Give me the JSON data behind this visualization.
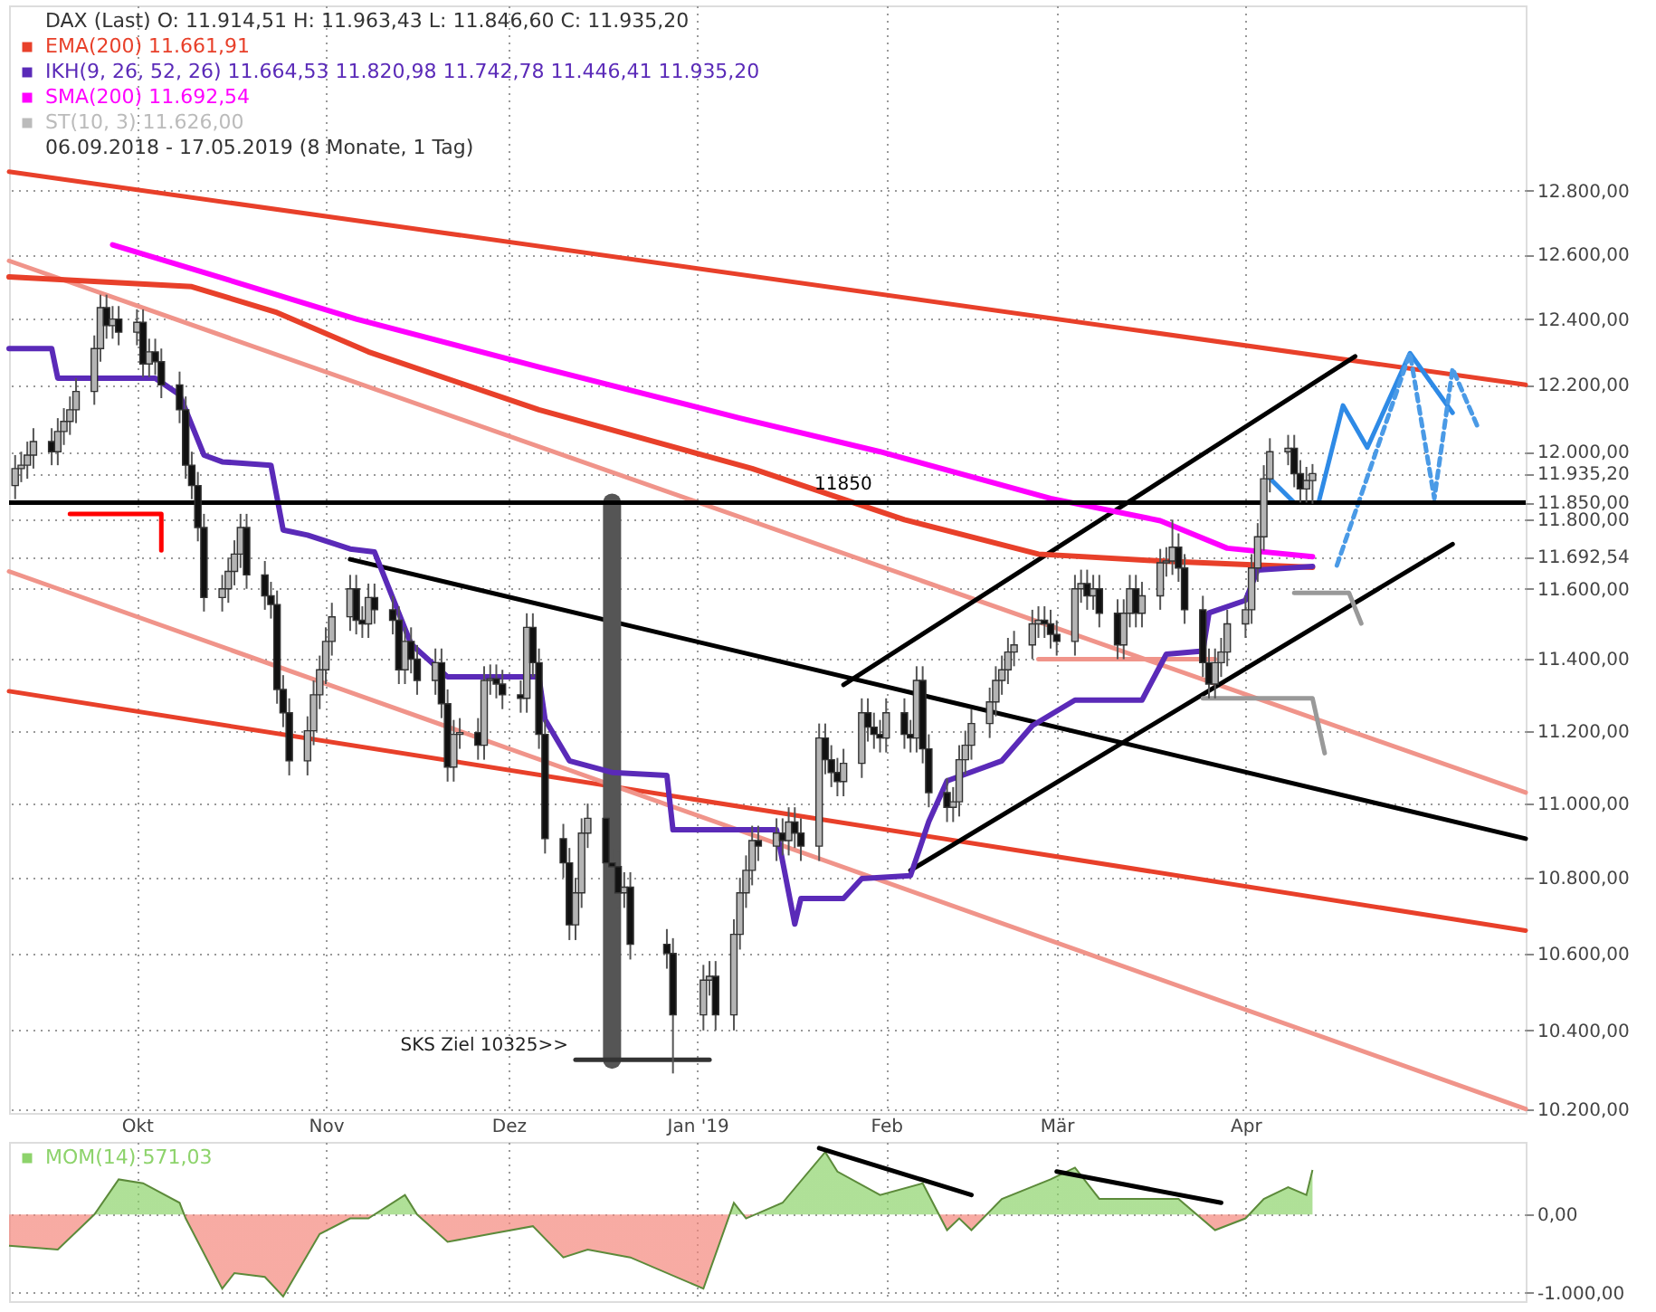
{
  "chart_data": [
    {
      "type": "candlestick",
      "title": "DAX (Last) O: 11.914,51 H: 11.963,43 L: 11.846,60 C: 11.935,20",
      "subtitle": "06.09.2018 - 17.05.2019 (8 Monate, 1 Tag)",
      "x": [
        "2018-09-11",
        "2018-09-12",
        "2018-09-13",
        "2018-09-14",
        "2018-09-17",
        "2018-09-18",
        "2018-09-19",
        "2018-09-20",
        "2018-09-21",
        "2018-09-24",
        "2018-09-25",
        "2018-09-26",
        "2018-09-27",
        "2018-09-28",
        "2018-10-01",
        "2018-10-02",
        "2018-10-03",
        "2018-10-04",
        "2018-10-05",
        "2018-10-08",
        "2018-10-09",
        "2018-10-10",
        "2018-10-11",
        "2018-10-12",
        "2018-10-15",
        "2018-10-16",
        "2018-10-17",
        "2018-10-18",
        "2018-10-19",
        "2018-10-22",
        "2018-10-23",
        "2018-10-24",
        "2018-10-25",
        "2018-10-26",
        "2018-10-29",
        "2018-10-30",
        "2018-10-31",
        "2018-11-01",
        "2018-11-02",
        "2018-11-05",
        "2018-11-06",
        "2018-11-07",
        "2018-11-08",
        "2018-11-09",
        "2018-11-12",
        "2018-11-13",
        "2018-11-14",
        "2018-11-15",
        "2018-11-16",
        "2018-11-19",
        "2018-11-20",
        "2018-11-21",
        "2018-11-22",
        "2018-11-23",
        "2018-11-26",
        "2018-11-27",
        "2018-11-28",
        "2018-11-29",
        "2018-11-30",
        "2018-12-03",
        "2018-12-04",
        "2018-12-05",
        "2018-12-06",
        "2018-12-07",
        "2018-12-10",
        "2018-12-11",
        "2018-12-12",
        "2018-12-13",
        "2018-12-14",
        "2018-12-17",
        "2018-12-18",
        "2018-12-19",
        "2018-12-20",
        "2018-12-21",
        "2018-12-27",
        "2018-12-28",
        "2019-01-02",
        "2019-01-03",
        "2019-01-04",
        "2019-01-07",
        "2019-01-08",
        "2019-01-09",
        "2019-01-10",
        "2019-01-11",
        "2019-01-14",
        "2019-01-15",
        "2019-01-16",
        "2019-01-17",
        "2019-01-18",
        "2019-01-21",
        "2019-01-22",
        "2019-01-23",
        "2019-01-24",
        "2019-01-25",
        "2019-01-28",
        "2019-01-29",
        "2019-01-30",
        "2019-01-31",
        "2019-02-01",
        "2019-02-04",
        "2019-02-05",
        "2019-02-06",
        "2019-02-07",
        "2019-02-08",
        "2019-02-11",
        "2019-02-12",
        "2019-02-13",
        "2019-02-14",
        "2019-02-15",
        "2019-02-18",
        "2019-02-19",
        "2019-02-20",
        "2019-02-21",
        "2019-02-22",
        "2019-02-25",
        "2019-02-26",
        "2019-02-27",
        "2019-02-28",
        "2019-03-01",
        "2019-03-04",
        "2019-03-05",
        "2019-03-06",
        "2019-03-07",
        "2019-03-08",
        "2019-03-11",
        "2019-03-12",
        "2019-03-13",
        "2019-03-14",
        "2019-03-15",
        "2019-03-18",
        "2019-03-19",
        "2019-03-20",
        "2019-03-21",
        "2019-03-22",
        "2019-03-25",
        "2019-03-26",
        "2019-03-27",
        "2019-03-28",
        "2019-03-29",
        "2019-04-01",
        "2019-04-02",
        "2019-04-03",
        "2019-04-04",
        "2019-04-05",
        "2019-04-08",
        "2019-04-09",
        "2019-04-10",
        "2019-04-11",
        "2019-04-12"
      ],
      "ohlc": [
        [
          11900,
          11990,
          11860,
          11950
        ],
        [
          11950,
          12000,
          11910,
          11960
        ],
        [
          11960,
          12030,
          11920,
          11990
        ],
        [
          11990,
          12070,
          11950,
          12030
        ],
        [
          12030,
          12070,
          11960,
          12000
        ],
        [
          12000,
          12100,
          11960,
          12060
        ],
        [
          12060,
          12130,
          12020,
          12090
        ],
        [
          12090,
          12165,
          12050,
          12125
        ],
        [
          12125,
          12220,
          12085,
          12180
        ],
        [
          12180,
          12350,
          12140,
          12310
        ],
        [
          12310,
          12475,
          12270,
          12435
        ],
        [
          12435,
          12475,
          12340,
          12380
        ],
        [
          12380,
          12440,
          12340,
          12400
        ],
        [
          12400,
          12440,
          12320,
          12360
        ],
        [
          12360,
          12430,
          12320,
          12390
        ],
        [
          12390,
          12430,
          12223,
          12263
        ],
        [
          12263,
          12340,
          12223,
          12300
        ],
        [
          12300,
          12340,
          12230,
          12270
        ],
        [
          12270,
          12310,
          12160,
          12200
        ],
        [
          12200,
          12240,
          12085,
          12125
        ],
        [
          12125,
          12165,
          11920,
          11960
        ],
        [
          11960,
          12000,
          11860,
          11900
        ],
        [
          11900,
          11940,
          11737,
          11777
        ],
        [
          11777,
          11817,
          11535,
          11575
        ],
        [
          11575,
          11640,
          11535,
          11600
        ],
        [
          11600,
          11690,
          11560,
          11650
        ],
        [
          11650,
          11740,
          11610,
          11700
        ],
        [
          11700,
          11817,
          11660,
          11777
        ],
        [
          11777,
          11817,
          11600,
          11640
        ],
        [
          11640,
          11680,
          11540,
          11580
        ],
        [
          11580,
          11620,
          11515,
          11555
        ],
        [
          11555,
          11595,
          11275,
          11315
        ],
        [
          11315,
          11355,
          11210,
          11250
        ],
        [
          11250,
          11290,
          11077,
          11117
        ],
        [
          11117,
          11240,
          11077,
          11200
        ],
        [
          11200,
          11340,
          11160,
          11300
        ],
        [
          11300,
          11410,
          11260,
          11370
        ],
        [
          11370,
          11490,
          11330,
          11450
        ],
        [
          11450,
          11560,
          11410,
          11520
        ],
        [
          11520,
          11640,
          11480,
          11600
        ],
        [
          11600,
          11640,
          11470,
          11510
        ],
        [
          11510,
          11550,
          11460,
          11500
        ],
        [
          11500,
          11615,
          11460,
          11575
        ],
        [
          11575,
          11615,
          11500,
          11540
        ],
        [
          11540,
          11580,
          11470,
          11510
        ],
        [
          11510,
          11550,
          11330,
          11370
        ],
        [
          11370,
          11490,
          11330,
          11450
        ],
        [
          11450,
          11490,
          11360,
          11400
        ],
        [
          11400,
          11440,
          11300,
          11340
        ],
        [
          11340,
          11430,
          11300,
          11390
        ],
        [
          11390,
          11430,
          11235,
          11275
        ],
        [
          11275,
          11315,
          11060,
          11100
        ],
        [
          11100,
          11230,
          11060,
          11190
        ],
        [
          11190,
          11235,
          11150,
          11195
        ],
        [
          11195,
          11235,
          11120,
          11160
        ],
        [
          11160,
          11380,
          11120,
          11340
        ],
        [
          11340,
          11385,
          11300,
          11345
        ],
        [
          11345,
          11385,
          11290,
          11330
        ],
        [
          11330,
          11370,
          11260,
          11300
        ],
        [
          11300,
          11340,
          11250,
          11290
        ],
        [
          11290,
          11530,
          11250,
          11490
        ],
        [
          11490,
          11530,
          11350,
          11390
        ],
        [
          11390,
          11430,
          11150,
          11190
        ],
        [
          11190,
          11230,
          10865,
          10905
        ],
        [
          10905,
          10945,
          10800,
          10840
        ],
        [
          10840,
          10880,
          10635,
          10675
        ],
        [
          10675,
          10800,
          10635,
          10760
        ],
        [
          10760,
          10960,
          10720,
          10920
        ],
        [
          10920,
          11000,
          10880,
          10960
        ],
        [
          10960,
          11000,
          10800,
          10840
        ],
        [
          10840,
          10880,
          10790,
          10830
        ],
        [
          10830,
          10870,
          10720,
          10760
        ],
        [
          10760,
          10815,
          10720,
          10775
        ],
        [
          10775,
          10815,
          10584,
          10624
        ],
        [
          10624,
          10664,
          10560,
          10600
        ],
        [
          10600,
          10640,
          10290,
          10440
        ],
        [
          10440,
          10570,
          10400,
          10530
        ],
        [
          10530,
          10580,
          10490,
          10540
        ],
        [
          10540,
          10580,
          10400,
          10440
        ],
        [
          10440,
          10690,
          10400,
          10650
        ],
        [
          10650,
          10800,
          10610,
          10760
        ],
        [
          10760,
          10860,
          10720,
          10820
        ],
        [
          10820,
          10940,
          10780,
          10900
        ],
        [
          10900,
          10940,
          10845,
          10885
        ],
        [
          10885,
          10960,
          10845,
          10920
        ],
        [
          10920,
          10960,
          10860,
          10900
        ],
        [
          10900,
          10990,
          10860,
          10950
        ],
        [
          10950,
          10990,
          10880,
          10920
        ],
        [
          10920,
          10960,
          10845,
          10885
        ],
        [
          10885,
          11220,
          10845,
          11180
        ],
        [
          11180,
          11220,
          11080,
          11120
        ],
        [
          11120,
          11160,
          11045,
          11085
        ],
        [
          11085,
          11125,
          11020,
          11060
        ],
        [
          11060,
          11150,
          11020,
          11110
        ],
        [
          11110,
          11290,
          11070,
          11250
        ],
        [
          11250,
          11290,
          11170,
          11210
        ],
        [
          11210,
          11250,
          11150,
          11190
        ],
        [
          11190,
          11230,
          11140,
          11180
        ],
        [
          11180,
          11290,
          11140,
          11250
        ],
        [
          11250,
          11290,
          11150,
          11190
        ],
        [
          11190,
          11230,
          11140,
          11180
        ],
        [
          11180,
          11380,
          11140,
          11340
        ],
        [
          11340,
          11380,
          11110,
          11150
        ],
        [
          11150,
          11190,
          10990,
          11030
        ],
        [
          11030,
          11070,
          10950,
          10990
        ],
        [
          10990,
          11045,
          10950,
          11005
        ],
        [
          11005,
          11160,
          10965,
          11120
        ],
        [
          11120,
          11200,
          11080,
          11160
        ],
        [
          11160,
          11260,
          11120,
          11220
        ],
        [
          11220,
          11320,
          11180,
          11280
        ],
        [
          11280,
          11380,
          11240,
          11340
        ],
        [
          11340,
          11410,
          11300,
          11370
        ],
        [
          11370,
          11460,
          11330,
          11420
        ],
        [
          11420,
          11480,
          11380,
          11440
        ],
        [
          11440,
          11540,
          11400,
          11500
        ],
        [
          11500,
          11550,
          11460,
          11510
        ],
        [
          11510,
          11550,
          11460,
          11500
        ],
        [
          11500,
          11540,
          11430,
          11470
        ],
        [
          11470,
          11510,
          11410,
          11450
        ],
        [
          11450,
          11640,
          11410,
          11600
        ],
        [
          11600,
          11655,
          11560,
          11615
        ],
        [
          11615,
          11655,
          11540,
          11580
        ],
        [
          11580,
          11640,
          11540,
          11600
        ],
        [
          11600,
          11640,
          11490,
          11530
        ],
        [
          11530,
          11570,
          11400,
          11440
        ],
        [
          11440,
          11570,
          11400,
          11530
        ],
        [
          11530,
          11640,
          11490,
          11600
        ],
        [
          11600,
          11640,
          11490,
          11530
        ],
        [
          11530,
          11620,
          11490,
          11580
        ],
        [
          11580,
          11715,
          11540,
          11675
        ],
        [
          11675,
          11720,
          11635,
          11680
        ],
        [
          11680,
          11800,
          11640,
          11720
        ],
        [
          11720,
          11760,
          11620,
          11660
        ],
        [
          11660,
          11700,
          11500,
          11540
        ],
        [
          11540,
          11580,
          11350,
          11390
        ],
        [
          11390,
          11430,
          11290,
          11330
        ],
        [
          11330,
          11430,
          11290,
          11390
        ],
        [
          11390,
          11460,
          11350,
          11420
        ],
        [
          11420,
          11540,
          11380,
          11500
        ],
        [
          11500,
          11580,
          11460,
          11540
        ],
        [
          11540,
          11700,
          11500,
          11660
        ],
        [
          11660,
          11790,
          11620,
          11750
        ],
        [
          11750,
          11960,
          11710,
          11920
        ],
        [
          11920,
          12040,
          11880,
          12000
        ],
        [
          12000,
          12050,
          11960,
          12010
        ],
        [
          12010,
          12050,
          11895,
          11935
        ],
        [
          11935,
          11975,
          11850,
          11890
        ],
        [
          11890,
          11955,
          11850,
          11915
        ],
        [
          11914.51,
          11963.43,
          11846.6,
          11935.2
        ]
      ],
      "xlim": [
        "2018-09-10",
        "2019-05-17"
      ],
      "xticks": [
        {
          "value": "2018-10-01",
          "label": "Okt"
        },
        {
          "value": "2018-11-01",
          "label": "Nov"
        },
        {
          "value": "2018-12-01",
          "label": "Dez"
        },
        {
          "value": "2019-01-01",
          "label": "Jan '19"
        },
        {
          "value": "2019-02-01",
          "label": "Feb"
        },
        {
          "value": "2019-03-01",
          "label": "Mär"
        },
        {
          "value": "2019-04-01",
          "label": "Apr"
        }
      ],
      "ylim": [
        10190,
        13400
      ],
      "yticks": [
        {
          "value": 10200,
          "label": "10.200,00"
        },
        {
          "value": 10400,
          "label": "10.400,00"
        },
        {
          "value": 10600,
          "label": "10.600,00"
        },
        {
          "value": 10800,
          "label": "10.800,00"
        },
        {
          "value": 11000,
          "label": "11.000,00"
        },
        {
          "value": 11200,
          "label": "11.200,00"
        },
        {
          "value": 11400,
          "label": "11.400,00"
        },
        {
          "value": 11600,
          "label": "11.600,00"
        },
        {
          "value": 11692.54,
          "label": "11.692,54"
        },
        {
          "value": 11800,
          "label": "11.800,00"
        },
        {
          "value": 11850,
          "label": "11.850,00"
        },
        {
          "value": 11935.2,
          "label": "11.935,20"
        },
        {
          "value": 12000,
          "label": "12.000,00"
        },
        {
          "value": 12200,
          "label": "12.200,00"
        },
        {
          "value": 12400,
          "label": "12.400,00"
        },
        {
          "value": 12600,
          "label": "12.600,00"
        },
        {
          "value": 12800,
          "label": "12.800,00"
        }
      ],
      "log": "y",
      "grid": true,
      "legend": "top left",
      "series": [
        {
          "type": "line",
          "color": "#e8402a",
          "x": [
            "2018-09-10",
            "2019-05-17"
          ],
          "values": [
            12860,
            12200
          ]
        },
        {
          "type": "line",
          "color": "#e8402a",
          "x": [
            "2018-09-10",
            "2019-05-17"
          ],
          "values": [
            11310,
            10660
          ]
        },
        {
          "type": "line",
          "color": "#f0948a",
          "x": [
            "2018-09-10",
            "2019-05-17"
          ],
          "values": [
            12580,
            11030
          ]
        },
        {
          "type": "line",
          "color": "#f0948a",
          "x": [
            "2018-09-10",
            "2019-05-17"
          ],
          "values": [
            11650,
            10200
          ]
        },
        {
          "type": "line",
          "color": "#000000",
          "x": [
            "2018-11-05",
            "2019-05-17"
          ],
          "values": [
            11685,
            10905
          ]
        },
        {
          "type": "line",
          "color": "#000000",
          "x": [
            "2019-01-25",
            "2019-04-19"
          ],
          "values": [
            11328,
            12286
          ]
        },
        {
          "type": "line",
          "color": "#000000",
          "x": [
            "2019-02-05",
            "2019-05-05"
          ],
          "values": [
            10820,
            11729
          ]
        },
        {
          "type": "line",
          "color": "#555555",
          "x": [
            "2018-12-18",
            "2018-12-18"
          ],
          "values": [
            10325,
            11850
          ]
        },
        {
          "type": "line",
          "color": "#333333",
          "x": [
            "2018-12-12",
            "2019-01-03"
          ],
          "values": [
            10325,
            10325
          ]
        },
        {
          "type": "line",
          "color": "#ff0000",
          "x": [
            "2018-09-20",
            "2018-10-05",
            "2018-10-05"
          ],
          "values": [
            11817,
            11817,
            11711
          ]
        },
        {
          "type": "line",
          "color": "#f0948a",
          "x": [
            "2019-02-26",
            "2019-03-27"
          ],
          "values": [
            11400,
            11400
          ]
        },
        {
          "type": "line",
          "color": "#999999",
          "x": [
            "2019-03-25",
            "2019-04-12",
            "2019-04-14"
          ],
          "values": [
            11290,
            11290,
            11138
          ]
        },
        {
          "type": "line",
          "color": "#999999",
          "x": [
            "2019-04-09",
            "2019-04-18",
            "2019-04-20"
          ],
          "values": [
            11588,
            11588,
            11501
          ]
        },
        {
          "name": "EMA(200) 11.661,91",
          "type": "line",
          "color": "#e8402a",
          "x": [
            "2018-09-10",
            "2018-10-10",
            "2018-10-24",
            "2018-11-08",
            "2018-12-06",
            "2019-01-10",
            "2019-02-04",
            "2019-02-26",
            "2019-03-18",
            "2019-04-12"
          ],
          "values": [
            12530,
            12500,
            12420,
            12300,
            12125,
            11950,
            11800,
            11700,
            11680,
            11661.91
          ]
        },
        {
          "name": "IKH(9, 26, 52, 26) 11.664,53 11.820,98 11.742,78 11.446,41 11.935,20",
          "type": "line",
          "color": "#5a2ab8",
          "x": [
            "2018-09-10",
            "2018-09-17",
            "2018-09-18",
            "2018-10-04",
            "2018-10-08",
            "2018-10-12",
            "2018-10-15",
            "2018-10-23",
            "2018-10-25",
            "2018-10-29",
            "2018-11-05",
            "2018-11-09",
            "2018-11-15",
            "2018-11-21",
            "2018-12-06",
            "2018-12-07",
            "2018-12-11",
            "2018-12-18",
            "2018-12-27",
            "2018-12-28",
            "2019-01-14",
            "2019-01-17",
            "2019-01-18",
            "2019-01-25",
            "2019-01-28",
            "2019-02-05",
            "2019-02-08",
            "2019-02-11",
            "2019-02-20",
            "2019-02-25",
            "2019-03-04",
            "2019-03-15",
            "2019-03-19",
            "2019-03-25",
            "2019-03-26",
            "2019-04-01",
            "2019-04-03",
            "2019-04-12"
          ],
          "values": [
            12310,
            12310,
            12220,
            12220,
            12170,
            11990,
            11970,
            11960,
            11770,
            11755,
            11715,
            11706,
            11443,
            11350,
            11350,
            11231,
            11117,
            11085,
            11077,
            10929,
            10929,
            10677,
            10745,
            10745,
            10798,
            10806,
            10951,
            11062,
            11117,
            11214,
            11285,
            11285,
            11414,
            11423,
            11531,
            11567,
            11654,
            11664.53
          ]
        },
        {
          "name": "SMA(200) 11.692,54",
          "type": "line",
          "color": "#ff00ff",
          "x": [
            "2018-09-27",
            "2018-10-12",
            "2018-11-06",
            "2018-12-06",
            "2019-01-08",
            "2019-01-31",
            "2019-02-28",
            "2019-03-18",
            "2019-03-29",
            "2019-04-12"
          ],
          "values": [
            12630,
            12544,
            12400,
            12254,
            12100,
            12000,
            11862,
            11797,
            11717,
            11692.54
          ]
        },
        {
          "type": "line",
          "color": "#2e8ae6",
          "x": [
            "2019-04-05",
            "2019-04-09",
            "2019-04-13",
            "2019-04-17",
            "2019-04-21",
            "2019-04-28",
            "2019-05-05"
          ],
          "values": [
            11921,
            11850,
            11850,
            12138,
            12012,
            12296,
            12116
          ]
        },
        {
          "type": "line",
          "color": "#4a9ae6",
          "line_style": "dashed",
          "x": [
            "2019-04-16",
            "2019-04-28",
            "2019-05-02",
            "2019-05-05",
            "2019-05-09"
          ],
          "values": [
            11667,
            12296,
            11862,
            12249,
            12079
          ]
        }
      ],
      "ref_lines": [
        {
          "axis": "y",
          "value": 11850,
          "label": "11850",
          "color": "#000000"
        }
      ],
      "annotations": [
        "ST(10, 3) 11.626,00",
        {
          "text": "SKS Ziel 10325>>",
          "x": "2018-12-12",
          "y": 10325
        }
      ]
    },
    {
      "type": "area",
      "xlim": [
        "2018-09-10",
        "2019-05-17"
      ],
      "xticks": [
        {
          "value": "2018-10-01",
          "label": null
        },
        {
          "value": "2018-11-01",
          "label": null
        },
        {
          "value": "2018-12-01",
          "label": null
        },
        {
          "value": "2019-01-01",
          "label": null
        },
        {
          "value": "2019-02-01",
          "label": null
        },
        {
          "value": "2019-03-01",
          "label": null
        },
        {
          "value": "2019-04-01",
          "label": null
        }
      ],
      "tick_labels": "y",
      "ylim": [
        -1110,
        930
      ],
      "yticks": [
        {
          "value": 0,
          "label": "0,00"
        },
        {
          "value": -1000,
          "label": "-1.000,00"
        }
      ],
      "grid": true,
      "legend": "top left",
      "series": [
        {
          "name": "MOM(14) 571,03",
          "type": "area",
          "x": [
            "2018-09-10",
            "2018-09-18",
            "2018-09-24",
            "2018-09-28",
            "2018-10-02",
            "2018-10-08",
            "2018-10-09",
            "2018-10-15",
            "2018-10-17",
            "2018-10-22",
            "2018-10-25",
            "2018-10-31",
            "2018-11-05",
            "2018-11-08",
            "2018-11-14",
            "2018-11-16",
            "2018-11-21",
            "2018-11-28",
            "2018-12-05",
            "2018-12-10",
            "2018-12-14",
            "2018-12-21",
            "2019-01-02",
            "2019-01-07",
            "2019-01-09",
            "2019-01-15",
            "2019-01-22",
            "2019-01-24",
            "2019-01-31",
            "2019-02-07",
            "2019-02-11",
            "2019-02-13",
            "2019-02-15",
            "2019-02-20",
            "2019-02-28",
            "2019-03-04",
            "2019-03-08",
            "2019-03-21",
            "2019-03-27",
            "2019-04-01",
            "2019-04-04",
            "2019-04-08",
            "2019-04-11",
            "2019-04-12"
          ],
          "values": [
            -400,
            -450,
            0,
            450,
            400,
            150,
            -50,
            -950,
            -750,
            -800,
            -1050,
            -250,
            -50,
            -50,
            250,
            0,
            -350,
            -250,
            -150,
            -550,
            -450,
            -550,
            -950,
            150,
            -50,
            150,
            800,
            550,
            250,
            400,
            -200,
            -50,
            -200,
            200,
            450,
            600,
            200,
            200,
            -200,
            -50,
            200,
            350,
            250,
            571.03
          ],
          "colors": [
            "#f4877c",
            "#f4877c",
            "#8dd36b",
            "#8dd36b",
            "#8dd36b",
            "#8dd36b",
            "#f4877c",
            "#f4877c",
            "#f4877c",
            "#f4877c",
            "#f4877c",
            "#f4877c",
            "#f4877c",
            "#f4877c",
            "#8dd36b",
            "#8dd36b",
            "#f4877c",
            "#f4877c",
            "#f4877c",
            "#f4877c",
            "#f4877c",
            "#f4877c",
            "#f4877c",
            "#8dd36b",
            "#f4877c",
            "#8dd36b",
            "#8dd36b",
            "#8dd36b",
            "#8dd36b",
            "#8dd36b",
            "#f4877c",
            "#f4877c",
            "#f4877c",
            "#8dd36b",
            "#8dd36b",
            "#8dd36b",
            "#8dd36b",
            "#8dd36b",
            "#f4877c",
            "#f4877c",
            "#8dd36b",
            "#8dd36b",
            "#8dd36b",
            "#8dd36b"
          ]
        },
        {
          "type": "line",
          "color": "#000000",
          "x": [
            "2019-01-21",
            "2019-02-15"
          ],
          "values": [
            850,
            250
          ]
        },
        {
          "type": "line",
          "color": "#000000",
          "x": [
            "2019-03-01",
            "2019-03-28"
          ],
          "values": [
            550,
            150
          ]
        }
      ]
    }
  ]
}
